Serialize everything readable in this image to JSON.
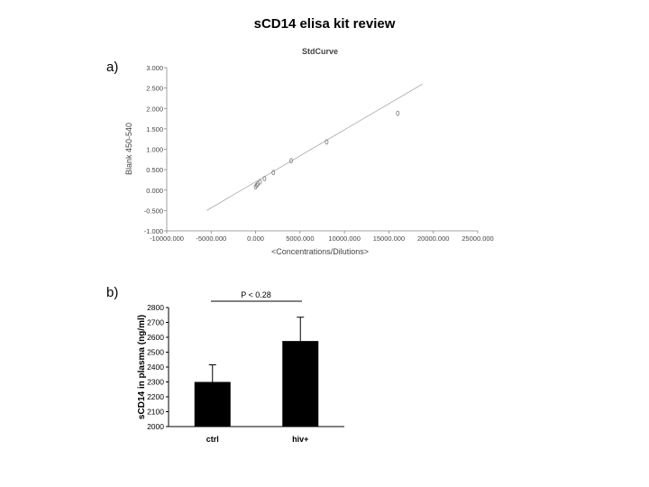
{
  "slide_title": "sCD14 elisa kit review",
  "panel_a_label": "a)",
  "panel_b_label": "b)",
  "chart_data": [
    {
      "type": "scatter",
      "title": "StdCurve",
      "xlabel": "<Concentrations/Dilutions>",
      "ylabel": "Blank 450-540",
      "xlim": [
        -10000,
        25000
      ],
      "ylim": [
        -1,
        3
      ],
      "x_ticks": [
        "-10000.000",
        "-5000.000",
        "0.000",
        "5000.000",
        "10000.000",
        "15000.000",
        "20000.000",
        "25000.000"
      ],
      "y_ticks": [
        "3.000",
        "2.500",
        "2.000",
        "1.500",
        "1.000",
        "0.500",
        "0.000",
        "-0.500",
        "-1.000"
      ],
      "points": [
        {
          "x": 0,
          "y": 0.08
        },
        {
          "x": 125,
          "y": 0.12
        },
        {
          "x": 250,
          "y": 0.15
        },
        {
          "x": 500,
          "y": 0.2
        },
        {
          "x": 1000,
          "y": 0.28
        },
        {
          "x": 2000,
          "y": 0.43
        },
        {
          "x": 4000,
          "y": 0.72
        },
        {
          "x": 8000,
          "y": 1.18
        },
        {
          "x": 16000,
          "y": 1.88
        }
      ],
      "fit_line": {
        "x": [
          -5500,
          18800
        ],
        "y": [
          -0.5,
          2.6
        ]
      }
    },
    {
      "type": "bar",
      "categories": [
        "ctrl",
        "hiv+"
      ],
      "values": [
        2300,
        2575
      ],
      "errors": [
        115,
        160
      ],
      "ylabel": "sCD14 in plasma (ng/ml)",
      "ylim": [
        2000,
        2800
      ],
      "y_ticks": [
        "2000",
        "2100",
        "2200",
        "2300",
        "2400",
        "2500",
        "2600",
        "2700",
        "2800"
      ],
      "annotation": "P < 0.28"
    }
  ]
}
